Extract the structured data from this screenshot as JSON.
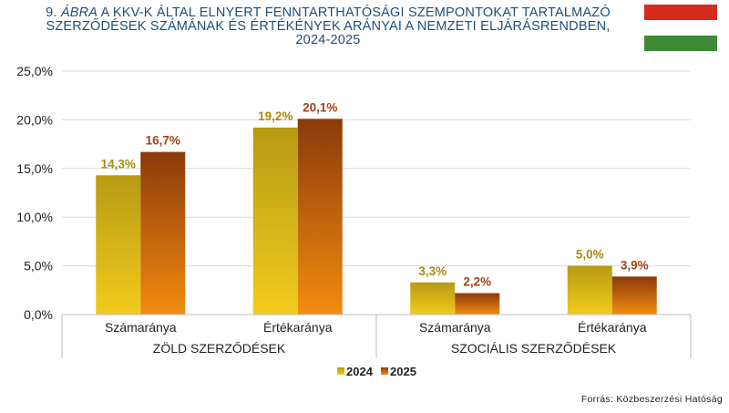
{
  "title": {
    "number": "9.",
    "abra": "ÁBRA",
    "line1_rest": "A KKV-K ÁLTAL ELNYERT FENNTARTHATÓSÁGI SZEMPONTOKAT TARTALMAZÓ",
    "line2": "SZERZŐDÉSEK SZÁMÁNAK ÉS ÉRTÉKÉNYEK ARÁNYAI A NEMZETI ELJÁRÁSRENDBEN,",
    "line3": "2024-2025"
  },
  "flag": {
    "colors": [
      "#d52b1e",
      "#ffffff",
      "#3d8b37"
    ]
  },
  "source": "Forrás: Közbeszerzési Hatóság",
  "chart_data": {
    "type": "bar",
    "categories": [
      "Számaránya",
      "Értékaránya",
      "Számaránya",
      "Értékaránya"
    ],
    "groups": [
      {
        "label": "ZÖLD SZERZŐDÉSEK",
        "span": [
          0,
          1
        ]
      },
      {
        "label": "SZOCIÁLIS SZERZŐDÉSEK",
        "span": [
          2,
          3
        ]
      }
    ],
    "series": [
      {
        "name": "2024",
        "values": [
          14.3,
          19.2,
          3.3,
          5.0
        ],
        "labels": [
          "14,3%",
          "19,2%",
          "3,3%",
          "5,0%"
        ],
        "color_top": "#b89a14",
        "color_bottom": "#f2cb1c",
        "label_color": "#a88a10"
      },
      {
        "name": "2025",
        "values": [
          16.7,
          20.1,
          2.2,
          3.9
        ],
        "labels": [
          "16,7%",
          "20,1%",
          "2,2%",
          "3,9%"
        ],
        "color_top": "#8b3a0a",
        "color_bottom": "#f28c10",
        "label_color": "#a0441a"
      }
    ],
    "ylim": [
      0,
      25
    ],
    "yticks": [
      0,
      5,
      10,
      15,
      20,
      25
    ],
    "ytick_labels": [
      "0,0%",
      "5,0%",
      "10,0%",
      "15,0%",
      "20,0%",
      "25,0%"
    ],
    "grid": true,
    "legend": "bottom-center"
  }
}
